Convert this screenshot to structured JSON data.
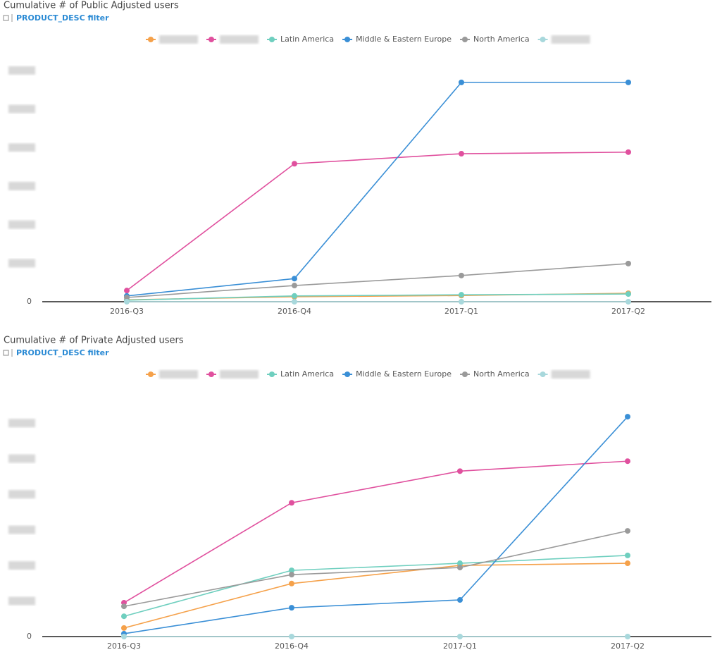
{
  "chart_data": [
    {
      "type": "line",
      "title": "Cumulative # of Public Adjusted users",
      "subtitle": "PRODUCT_DESC filter",
      "categories": [
        "2016-Q3",
        "2016-Q4",
        "2017-Q1",
        "2017-Q2"
      ],
      "series": [
        {
          "name": null,
          "color": "#f5a14a",
          "values": [
            0.05,
            0.13,
            0.16,
            0.22
          ]
        },
        {
          "name": null,
          "color": "#e0509e",
          "values": [
            0.29,
            3.58,
            3.84,
            3.88
          ]
        },
        {
          "name": "Latin America",
          "color": "#6fcfbf",
          "values": [
            0.04,
            0.15,
            0.18,
            0.2
          ]
        },
        {
          "name": "Middle & Eastern Europe",
          "color": "#3a8fd6",
          "values": [
            0.15,
            0.6,
            5.69,
            5.69
          ]
        },
        {
          "name": "North America",
          "color": "#9a9a9a",
          "values": [
            0.11,
            0.42,
            0.68,
            0.99
          ]
        },
        {
          "name": null,
          "color": "#a8d8dc",
          "values": [
            0,
            0,
            0,
            0
          ]
        }
      ],
      "ylim": [
        0,
        6.2
      ],
      "yticks": [
        0,
        {
          "value": 1,
          "label": null
        },
        {
          "value": 2,
          "label": null
        },
        {
          "value": 3,
          "label": null
        },
        {
          "value": 4,
          "label": null
        },
        {
          "value": 5,
          "label": null
        },
        {
          "value": 6,
          "label": null
        }
      ],
      "grid": false,
      "legend": "top"
    },
    {
      "type": "line",
      "title": "Cumulative # of Private Adjusted users",
      "subtitle": "PRODUCT_DESC filter",
      "categories": [
        "2016-Q3",
        "2016-Q4",
        "2017-Q1",
        "2017-Q2"
      ],
      "series": [
        {
          "name": null,
          "color": "#f5a14a",
          "values": [
            0.24,
            1.49,
            2.0,
            2.06
          ]
        },
        {
          "name": null,
          "color": "#e0509e",
          "values": [
            0.95,
            3.76,
            4.65,
            4.93
          ]
        },
        {
          "name": "Latin America",
          "color": "#6fcfbf",
          "values": [
            0.57,
            1.86,
            2.06,
            2.28
          ]
        },
        {
          "name": "Middle & Eastern Europe",
          "color": "#3a8fd6",
          "values": [
            0.08,
            0.81,
            1.03,
            6.18
          ]
        },
        {
          "name": "North America",
          "color": "#9a9a9a",
          "values": [
            0.85,
            1.74,
            1.94,
            2.97
          ]
        },
        {
          "name": null,
          "color": "#a8d8dc",
          "values": [
            0,
            0,
            0,
            0
          ]
        }
      ],
      "ylim": [
        0,
        6.4
      ],
      "yticks": [
        0,
        {
          "value": 1,
          "label": null
        },
        {
          "value": 2,
          "label": null
        },
        {
          "value": 3,
          "label": null
        },
        {
          "value": 4,
          "label": null
        },
        {
          "value": 5,
          "label": null
        },
        {
          "value": 6,
          "label": null
        }
      ],
      "grid": false,
      "legend": "top"
    }
  ]
}
